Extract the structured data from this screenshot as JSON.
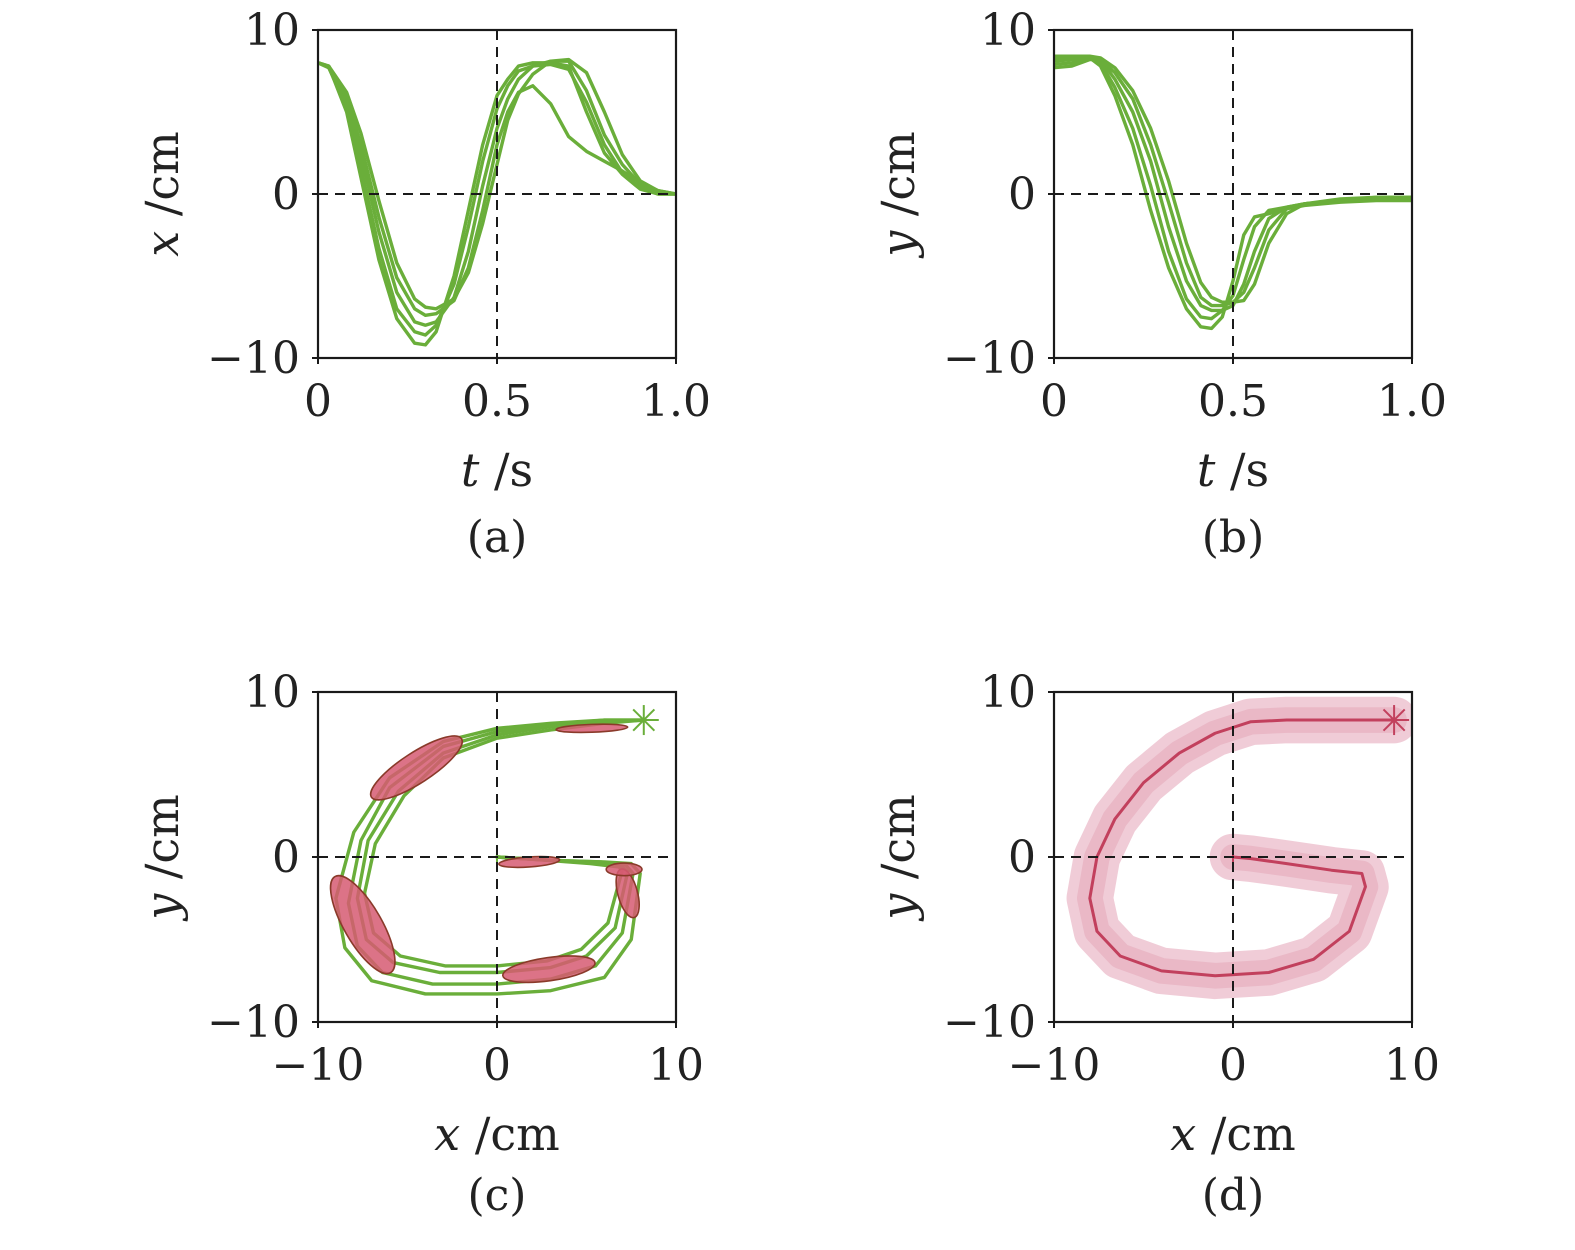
{
  "colors": {
    "trajectory": "#6aae3a",
    "ellipse_fill": "#d65a72",
    "ellipse_stroke": "#8a3a2a",
    "mean": "#c2405d",
    "band": "#e4a3b6",
    "axes": "#1a1a1a"
  },
  "chart_data": [
    {
      "id": "a",
      "type": "line",
      "caption": "(a)",
      "xlabel_var": "t",
      "xlabel_unit": "/s",
      "ylabel_var": "x",
      "ylabel_unit": "/cm",
      "xlim": [
        0,
        1.0
      ],
      "ylim": [
        -10,
        10
      ],
      "xticks": [
        {
          "v": 0,
          "label": "0"
        },
        {
          "v": 0.5,
          "label": "0.5"
        },
        {
          "v": 1.0,
          "label": "1.0"
        }
      ],
      "yticks": [
        {
          "v": -10,
          "label": "−10"
        },
        {
          "v": 0,
          "label": "0"
        },
        {
          "v": 10,
          "label": "10"
        }
      ],
      "ref_lines": {
        "x": 0.5,
        "y": 0
      },
      "grid": false,
      "legend": "none",
      "series": [
        {
          "x": [
            0,
            0.03,
            0.08,
            0.12,
            0.17,
            0.22,
            0.27,
            0.3,
            0.33,
            0.38,
            0.42,
            0.46,
            0.5,
            0.53,
            0.56,
            0.6,
            0.65,
            0.7,
            0.75,
            0.8,
            0.85,
            0.9,
            0.95,
            1.0
          ],
          "y": [
            8,
            7.8,
            5,
            1,
            -4,
            -7.6,
            -9.1,
            -9.2,
            -8.4,
            -5,
            -1,
            3,
            6,
            7,
            7.8,
            8,
            8,
            7.8,
            5,
            2.5,
            1.2,
            0.3,
            0,
            0
          ]
        },
        {
          "x": [
            0,
            0.03,
            0.08,
            0.12,
            0.17,
            0.22,
            0.27,
            0.3,
            0.33,
            0.38,
            0.42,
            0.46,
            0.5,
            0.53,
            0.56,
            0.6,
            0.65,
            0.7,
            0.75,
            0.8,
            0.85,
            0.9,
            0.95,
            1.0
          ],
          "y": [
            8,
            7.7,
            5.3,
            1.6,
            -3.3,
            -7,
            -8.4,
            -8.6,
            -8,
            -5.5,
            -2,
            2,
            5.2,
            6.6,
            7.5,
            7.8,
            7.9,
            7.6,
            5.6,
            3,
            1.3,
            0.4,
            0,
            0
          ]
        },
        {
          "x": [
            0,
            0.03,
            0.08,
            0.12,
            0.17,
            0.22,
            0.27,
            0.3,
            0.33,
            0.38,
            0.42,
            0.46,
            0.5,
            0.53,
            0.56,
            0.6,
            0.65,
            0.7,
            0.75,
            0.8,
            0.85,
            0.9,
            0.95,
            1.0
          ],
          "y": [
            8,
            7.8,
            5.6,
            2.4,
            -2.3,
            -6,
            -7.8,
            -8,
            -7.8,
            -6.3,
            -3.5,
            0.5,
            4,
            5.8,
            7,
            7.8,
            8.1,
            8.1,
            6.3,
            3.6,
            1.8,
            0.6,
            0.1,
            0
          ]
        },
        {
          "x": [
            0,
            0.03,
            0.08,
            0.12,
            0.17,
            0.22,
            0.27,
            0.3,
            0.33,
            0.38,
            0.42,
            0.46,
            0.5,
            0.53,
            0.56,
            0.6,
            0.65,
            0.7,
            0.75,
            0.8,
            0.85,
            0.9,
            0.95,
            1.0
          ],
          "y": [
            8,
            7.7,
            5.9,
            3,
            -1.4,
            -5.1,
            -7,
            -7.4,
            -7.3,
            -6.5,
            -4.5,
            -1,
            3,
            5,
            6.2,
            6.6,
            5.5,
            3.5,
            2.6,
            2,
            1.4,
            0.7,
            0.2,
            0
          ]
        },
        {
          "x": [
            0,
            0.03,
            0.08,
            0.12,
            0.17,
            0.22,
            0.27,
            0.3,
            0.33,
            0.38,
            0.42,
            0.46,
            0.5,
            0.53,
            0.56,
            0.6,
            0.65,
            0.7,
            0.75,
            0.8,
            0.85,
            0.9,
            0.95,
            1.0
          ],
          "y": [
            8,
            7.8,
            6.2,
            3.7,
            -0.4,
            -4.2,
            -6.4,
            -6.9,
            -7,
            -6.4,
            -4.8,
            -1.8,
            1.8,
            4.5,
            6.1,
            7.3,
            8.1,
            8.2,
            7.4,
            5,
            2.4,
            0.8,
            0.2,
            0
          ]
        }
      ]
    },
    {
      "id": "b",
      "type": "line",
      "caption": "(b)",
      "xlabel_var": "t",
      "xlabel_unit": "/s",
      "ylabel_var": "y",
      "ylabel_unit": "/cm",
      "xlim": [
        0,
        1.0
      ],
      "ylim": [
        -10,
        10
      ],
      "xticks": [
        {
          "v": 0,
          "label": "0"
        },
        {
          "v": 0.5,
          "label": "0.5"
        },
        {
          "v": 1.0,
          "label": "1.0"
        }
      ],
      "yticks": [
        {
          "v": -10,
          "label": "−10"
        },
        {
          "v": 0,
          "label": "0"
        },
        {
          "v": 10,
          "label": "10"
        }
      ],
      "ref_lines": {
        "x": 0.5,
        "y": 0
      },
      "grid": false,
      "legend": "none",
      "series": [
        {
          "x": [
            0,
            0.05,
            0.1,
            0.13,
            0.17,
            0.22,
            0.27,
            0.32,
            0.37,
            0.41,
            0.44,
            0.47,
            0.5,
            0.53,
            0.56,
            0.6,
            0.65,
            0.7,
            0.8,
            0.9,
            1.0
          ],
          "y": [
            8.3,
            8.3,
            8.3,
            7.8,
            6,
            3,
            -1,
            -4.5,
            -7,
            -8.1,
            -8.2,
            -7.5,
            -5.3,
            -2.5,
            -1.4,
            -1.2,
            -0.9,
            -0.7,
            -0.5,
            -0.4,
            -0.4
          ]
        },
        {
          "x": [
            0,
            0.05,
            0.1,
            0.13,
            0.17,
            0.22,
            0.27,
            0.32,
            0.37,
            0.41,
            0.44,
            0.47,
            0.5,
            0.53,
            0.56,
            0.6,
            0.65,
            0.7,
            0.8,
            0.9,
            1.0
          ],
          "y": [
            8.1,
            8.2,
            8.3,
            8,
            6.5,
            4,
            0.5,
            -3.5,
            -6.4,
            -7.5,
            -7.6,
            -7.1,
            -6.2,
            -4,
            -2,
            -1,
            -0.8,
            -0.6,
            -0.4,
            -0.3,
            -0.3
          ]
        },
        {
          "x": [
            0,
            0.05,
            0.1,
            0.13,
            0.17,
            0.22,
            0.27,
            0.32,
            0.37,
            0.41,
            0.44,
            0.47,
            0.5,
            0.53,
            0.56,
            0.6,
            0.65,
            0.7,
            0.8,
            0.9,
            1.0
          ],
          "y": [
            7.9,
            8,
            8.3,
            8.2,
            7,
            5,
            2,
            -2,
            -5.3,
            -6.8,
            -7.1,
            -7.1,
            -6.8,
            -5.5,
            -3.5,
            -1.5,
            -0.8,
            -0.6,
            -0.4,
            -0.3,
            -0.2
          ]
        },
        {
          "x": [
            0,
            0.05,
            0.1,
            0.13,
            0.17,
            0.22,
            0.27,
            0.32,
            0.37,
            0.41,
            0.44,
            0.47,
            0.5,
            0.53,
            0.56,
            0.6,
            0.65,
            0.7,
            0.8,
            0.9,
            1.0
          ],
          "y": [
            7.7,
            7.8,
            8.2,
            8.2,
            7.4,
            5.8,
            3,
            -0.5,
            -4.2,
            -6.3,
            -6.8,
            -6.8,
            -6.6,
            -6,
            -4.5,
            -2.2,
            -0.9,
            -0.6,
            -0.4,
            -0.2,
            -0.2
          ]
        },
        {
          "x": [
            0,
            0.05,
            0.1,
            0.13,
            0.17,
            0.22,
            0.27,
            0.32,
            0.37,
            0.41,
            0.44,
            0.47,
            0.5,
            0.53,
            0.56,
            0.6,
            0.65,
            0.7,
            0.8,
            0.9,
            1.0
          ],
          "y": [
            8.4,
            8.4,
            8.4,
            8.3,
            7.7,
            6.3,
            4,
            0.8,
            -3,
            -5.4,
            -6.3,
            -6.6,
            -6.6,
            -6.5,
            -5.5,
            -3,
            -1.2,
            -0.6,
            -0.3,
            -0.2,
            -0.2
          ]
        }
      ]
    },
    {
      "id": "c",
      "type": "line",
      "caption": "(c)",
      "xlabel_var": "x",
      "xlabel_unit": "/cm",
      "ylabel_var": "y",
      "ylabel_unit": "/cm",
      "xlim": [
        -10,
        10
      ],
      "ylim": [
        -10,
        10
      ],
      "xticks": [
        {
          "v": -10,
          "label": "−10"
        },
        {
          "v": 0,
          "label": "0"
        },
        {
          "v": 10,
          "label": "10"
        }
      ],
      "yticks": [
        {
          "v": -10,
          "label": "−10"
        },
        {
          "v": 0,
          "label": "0"
        },
        {
          "v": 10,
          "label": "10"
        }
      ],
      "ref_lines": {
        "x": 0,
        "y": 0
      },
      "grid": false,
      "legend": "none",
      "start_marker": [
        8.2,
        8.3
      ],
      "end_marker": [
        0,
        0
      ],
      "series": [
        {
          "x": [
            8.2,
            6,
            3,
            0,
            -3,
            -6,
            -8,
            -9,
            -8.5,
            -7,
            -4,
            0,
            3,
            6,
            7.5,
            8,
            7.5,
            6,
            3,
            0
          ],
          "y": [
            8.3,
            8.3,
            8.1,
            7.8,
            7,
            4.8,
            1.5,
            -2.5,
            -5.5,
            -7.5,
            -8.3,
            -8.3,
            -8.1,
            -7.3,
            -5,
            -1,
            -0.4,
            -0.3,
            -0.2,
            0
          ]
        },
        {
          "x": [
            8.2,
            6,
            3,
            0,
            -3,
            -6,
            -7.6,
            -8.3,
            -7.8,
            -6.4,
            -3.6,
            0,
            3,
            5.5,
            7,
            7.6,
            7.2,
            5.8,
            3,
            0
          ],
          "y": [
            8.3,
            8.3,
            8,
            7.6,
            6.7,
            4.2,
            1,
            -2.8,
            -5.4,
            -7,
            -7.7,
            -7.7,
            -7.4,
            -6.6,
            -4.6,
            -1,
            -0.5,
            -0.3,
            -0.2,
            0
          ]
        },
        {
          "x": [
            8.2,
            6,
            3,
            0,
            -3,
            -5.5,
            -7.2,
            -7.8,
            -7.3,
            -5.8,
            -3.2,
            0,
            3,
            5,
            6.6,
            7.3,
            7,
            5.5,
            3,
            0
          ],
          "y": [
            8.3,
            8.2,
            7.9,
            7.4,
            6.3,
            4,
            1,
            -2.5,
            -5,
            -6.4,
            -7,
            -7,
            -6.7,
            -6,
            -4.3,
            -0.9,
            -0.6,
            -0.4,
            -0.2,
            0
          ]
        },
        {
          "x": [
            8.2,
            6,
            3,
            0,
            -3,
            -5.2,
            -6.8,
            -7.4,
            -6.9,
            -5.4,
            -2.9,
            0,
            2.8,
            4.7,
            6.2,
            7,
            6.8,
            5.2,
            2.8,
            0
          ],
          "y": [
            8.3,
            8.1,
            7.7,
            7.2,
            6,
            3.7,
            0.8,
            -2.2,
            -4.6,
            -6,
            -6.6,
            -6.6,
            -6.3,
            -5.6,
            -4,
            -0.8,
            -0.6,
            -0.4,
            -0.2,
            0
          ]
        }
      ],
      "ellipses": [
        {
          "cx": 5.3,
          "cy": 7.8,
          "rx": 2,
          "ry": 0.22,
          "angle": -2
        },
        {
          "cx": -4.5,
          "cy": 5.4,
          "rx": 3,
          "ry": 0.85,
          "angle": -33
        },
        {
          "cx": -7.5,
          "cy": -4.1,
          "rx": 3.1,
          "ry": 1.05,
          "angle": 60
        },
        {
          "cx": 2.9,
          "cy": -6.8,
          "rx": 2.6,
          "ry": 0.65,
          "angle": -8
        },
        {
          "cx": 7.3,
          "cy": -2.2,
          "rx": 1.4,
          "ry": 0.55,
          "angle": 75
        },
        {
          "cx": 7.1,
          "cy": -0.75,
          "rx": 1.0,
          "ry": 0.35,
          "angle": 0
        },
        {
          "cx": 1.8,
          "cy": -0.3,
          "rx": 1.7,
          "ry": 0.28,
          "angle": -4
        }
      ]
    },
    {
      "id": "d",
      "type": "area",
      "caption": "(d)",
      "xlabel_var": "x",
      "xlabel_unit": "/cm",
      "ylabel_var": "y",
      "ylabel_unit": "/cm",
      "xlim": [
        -10,
        10
      ],
      "ylim": [
        -10,
        10
      ],
      "xticks": [
        {
          "v": -10,
          "label": "−10"
        },
        {
          "v": 0,
          "label": "0"
        },
        {
          "v": 10,
          "label": "10"
        }
      ],
      "yticks": [
        {
          "v": -10,
          "label": "−10"
        },
        {
          "v": 0,
          "label": "0"
        },
        {
          "v": 10,
          "label": "10"
        }
      ],
      "ref_lines": {
        "x": 0,
        "y": 0
      },
      "grid": false,
      "legend": "none",
      "start_marker": [
        9,
        8.3
      ],
      "end_marker": [
        0,
        0
      ],
      "band_halfwidth": 1.3,
      "mean": {
        "x": [
          9,
          6,
          3,
          1,
          -1,
          -3,
          -5,
          -6.6,
          -7.6,
          -8,
          -7.6,
          -6.3,
          -4,
          -1,
          2,
          4.5,
          6.5,
          7.4,
          7.2,
          5.5,
          3,
          1,
          0
        ],
        "y": [
          8.3,
          8.3,
          8.3,
          8.2,
          7.5,
          6.3,
          4.5,
          2.3,
          0,
          -2.5,
          -4.5,
          -6,
          -6.9,
          -7.2,
          -7,
          -6.2,
          -4.5,
          -1.8,
          -1,
          -0.8,
          -0.4,
          -0.1,
          0
        ]
      }
    }
  ]
}
